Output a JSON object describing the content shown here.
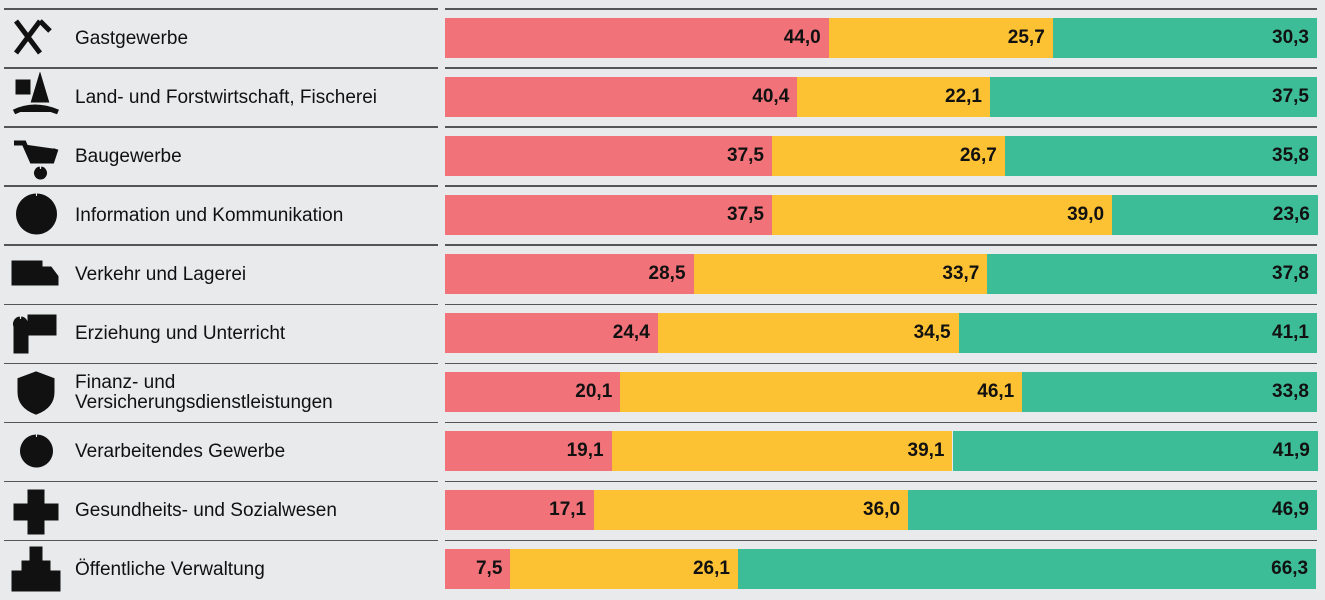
{
  "chart_data": {
    "type": "stacked-bar-horizontal",
    "categories": [
      "Gastgewerbe",
      "Land- und Forstwirtschaft, Fischerei",
      "Baugewerbe",
      "Information und Kommunikation",
      "Verkehr und Lagerei",
      "Erziehung und Unterricht",
      "Finanz- und Versicherungsdienstleistungen",
      "Verarbeitendes Gewerbe",
      "Gesundheits- und Sozialwesen",
      "Öffentliche Verwaltung"
    ],
    "xlim": [
      0,
      100
    ],
    "series": [
      {
        "color": "#f2727a",
        "values": [
          44.0,
          40.4,
          37.5,
          37.5,
          28.5,
          24.4,
          20.1,
          19.1,
          17.1,
          7.5
        ],
        "value_labels": [
          "44,0",
          "40,4",
          "37,5",
          "37,5",
          "28,5",
          "24,4",
          "20,1",
          "19,1",
          "17,1",
          "7,5"
        ]
      },
      {
        "color": "#fdc134",
        "values": [
          25.7,
          22.1,
          26.7,
          39.0,
          33.7,
          34.5,
          46.1,
          39.1,
          36.0,
          26.1
        ],
        "value_labels": [
          "25,7",
          "22,1",
          "26,7",
          "39,0",
          "33,7",
          "34,5",
          "46,1",
          "39,1",
          "36,0",
          "26,1"
        ]
      },
      {
        "color": "#3dbd97",
        "values": [
          30.3,
          37.5,
          35.8,
          23.6,
          37.8,
          41.1,
          33.8,
          41.9,
          46.9,
          66.3
        ],
        "value_labels": [
          "30,3",
          "37,5",
          "35,8",
          "23,6",
          "37,8",
          "41,1",
          "33,8",
          "41,9",
          "46,9",
          "66,3"
        ]
      }
    ]
  }
}
